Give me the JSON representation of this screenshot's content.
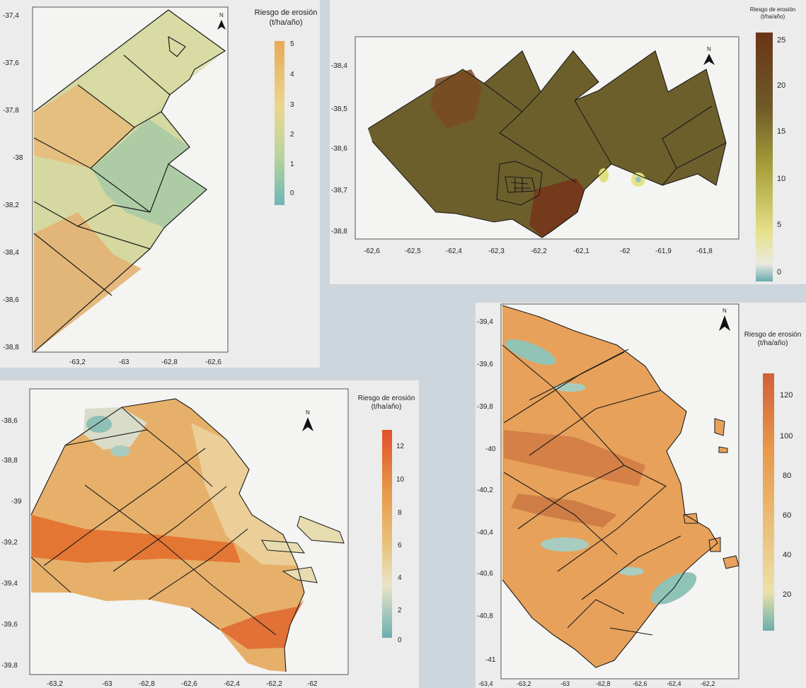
{
  "panels": [
    {
      "id": "p1",
      "legend": {
        "title_line1": "Riesgo de erosión",
        "title_line2": "(t/ha/año)",
        "ticks": [
          "5",
          "4",
          "3",
          "2",
          "1",
          "0"
        ],
        "scale_min": 0,
        "scale_max": 5
      },
      "y_ticks": [
        "-37,4",
        "-37,6",
        "-37,8",
        "-38",
        "-38,2",
        "-38,4",
        "-38,6",
        "-38,8"
      ],
      "x_ticks": [
        "-63,2",
        "-63",
        "-62,8",
        "-62,6"
      ],
      "north_label": "N"
    },
    {
      "id": "p2",
      "legend": {
        "title_line1": "Riesgo de erosión",
        "title_line2": "(t/ha/año)",
        "ticks": [
          "25",
          "20",
          "15",
          "10",
          "5",
          "0"
        ],
        "scale_min": 0,
        "scale_max": 25
      },
      "y_ticks": [
        "-38,4",
        "-38,5",
        "-38,6",
        "-38,7",
        "-38,8"
      ],
      "x_ticks": [
        "-62,6",
        "-62,5",
        "-62,4",
        "-62,3",
        "-62,2",
        "-62,1",
        "-62",
        "-61,9",
        "-61,8"
      ],
      "north_label": "N"
    },
    {
      "id": "p3",
      "legend": {
        "title_line1": "Riesgo de erosión",
        "title_line2": "(t/ha/año)",
        "ticks": [
          "12",
          "10",
          "8",
          "6",
          "4",
          "2",
          "0"
        ],
        "scale_min": 0,
        "scale_max": 13
      },
      "y_ticks": [
        "-38,6",
        "-38,8",
        "-39",
        "-39,2",
        "-39,4",
        "-39,6",
        "-39,8"
      ],
      "x_ticks": [
        "-63,2",
        "-63",
        "-62,8",
        "-62,6",
        "-62,4",
        "-62,2",
        "-62"
      ],
      "north_label": "N"
    },
    {
      "id": "p4",
      "legend": {
        "title_line1": "Riesgo de erosión",
        "title_line2": "(t/ha/año)",
        "ticks": [
          "120",
          "100",
          "80",
          "60",
          "40",
          "20"
        ],
        "scale_min": 0,
        "scale_max": 130
      },
      "y_ticks": [
        "-39,4",
        "-39,6",
        "-39,8",
        "-40",
        "-40,2",
        "-40,4",
        "-40,6",
        "-40,8",
        "-41"
      ],
      "x_ticks": [
        "-63,4",
        "-63,2",
        "-63",
        "-62,8",
        "-62,6",
        "-62,4",
        "-62,2"
      ],
      "north_label": "N"
    }
  ],
  "colors": {
    "ramp_low": "#6fb3b3",
    "ramp_mid_low": "#c8d99a",
    "ramp_mid": "#e8d68a",
    "ramp_high": "#e8a24c",
    "ramp_top": "#e0502a",
    "brown_low": "#8fc0bd",
    "brown_mid": "#d8d45a",
    "brown_high": "#6e5a28",
    "brown_top": "#6a3418",
    "boundary": "#1a1a1a"
  }
}
